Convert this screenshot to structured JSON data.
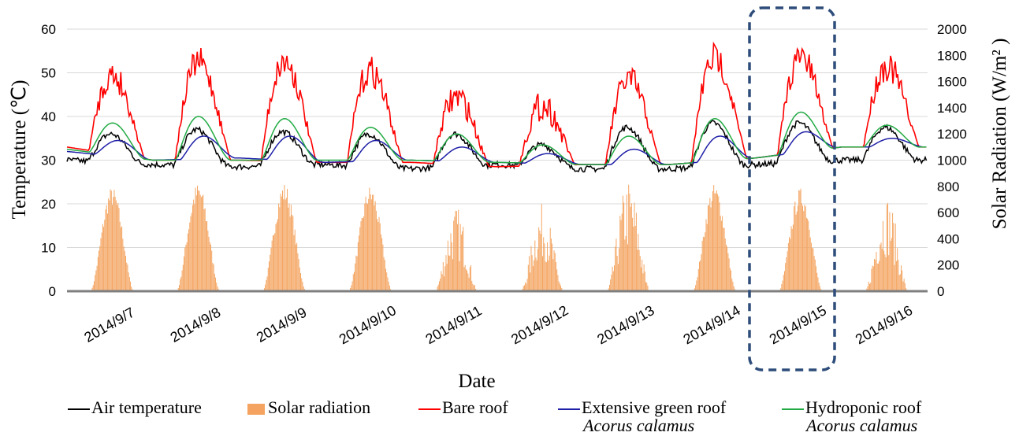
{
  "chart_data": {
    "type": "line",
    "xlabel": "Date",
    "ylabel_left": "Temperature (℃)",
    "ylabel_right": "Solar Radiation (W/m² )",
    "y_left_range": [
      0,
      60
    ],
    "y_left_ticks": [
      "0",
      "10",
      "20",
      "30",
      "40",
      "50",
      "60"
    ],
    "y_right_range": [
      0,
      2000
    ],
    "y_right_ticks": [
      "0",
      "200",
      "400",
      "600",
      "800",
      "1000",
      "1200",
      "1400",
      "1600",
      "1800",
      "2000"
    ],
    "categories": [
      "2014/9/7",
      "2014/9/8",
      "2014/9/9",
      "2014/9/10",
      "2014/9/11",
      "2014/9/12",
      "2014/9/13",
      "2014/9/14",
      "2014/9/15",
      "2014/9/16"
    ],
    "grid": true,
    "highlighted_category": "2014/9/15",
    "series": [
      {
        "name": "Air temperature",
        "axis": "left",
        "color": "#000000",
        "night": [
          30,
          29,
          28.5,
          29,
          28,
          29,
          28,
          28,
          29,
          30,
          30
        ],
        "daily_max": [
          36,
          37,
          36.5,
          36,
          36,
          33.5,
          37.5,
          38.5,
          38.5,
          37.5
        ]
      },
      {
        "name": "Solar radiation",
        "axis": "right",
        "color": "#f4a460",
        "kind": "bar",
        "daily_max": [
          800,
          830,
          830,
          810,
          650,
          670,
          860,
          820,
          790,
          740
        ]
      },
      {
        "name": "Bare roof",
        "axis": "left",
        "color": "#ff0000",
        "night": [
          33,
          30,
          30,
          29.5,
          29.5,
          28.5,
          29,
          29,
          30.5,
          33,
          33
        ],
        "daily_max": [
          53,
          56,
          56,
          54,
          48,
          46,
          52,
          57,
          57,
          55
        ]
      },
      {
        "name": "Extensive green roof",
        "name_sub": "Acorus calamus",
        "axis": "left",
        "color": "#1f1fa8",
        "night": [
          32,
          30,
          30.5,
          29.5,
          30,
          29.5,
          29,
          29,
          30.5,
          33,
          33
        ],
        "daily_max": [
          34.5,
          35.5,
          35.5,
          34.5,
          33,
          31.5,
          32.5,
          35.5,
          36.5,
          35
        ]
      },
      {
        "name": "Hydroponic roof",
        "name_sub": "Acorus calamus",
        "axis": "left",
        "color": "#22aa44",
        "night": [
          32.5,
          30,
          30,
          30,
          30,
          29.5,
          29,
          29,
          30.5,
          33,
          33
        ],
        "daily_max": [
          38.5,
          40,
          39.5,
          37.5,
          36,
          33.5,
          35.5,
          39.5,
          41,
          38
        ]
      }
    ]
  },
  "legend": [
    {
      "label": "Air temperature",
      "color": "#000000",
      "kind": "line"
    },
    {
      "label": "Solar radiation",
      "color": "#f4a460",
      "kind": "box"
    },
    {
      "label": "Bare roof",
      "color": "#ff0000",
      "kind": "line"
    },
    {
      "label": "Extensive green roof",
      "sub": "Acorus calamus",
      "color": "#1f1fa8",
      "kind": "line"
    },
    {
      "label": "Hydroponic roof",
      "sub": "Acorus calamus",
      "color": "#22aa44",
      "kind": "line"
    }
  ]
}
